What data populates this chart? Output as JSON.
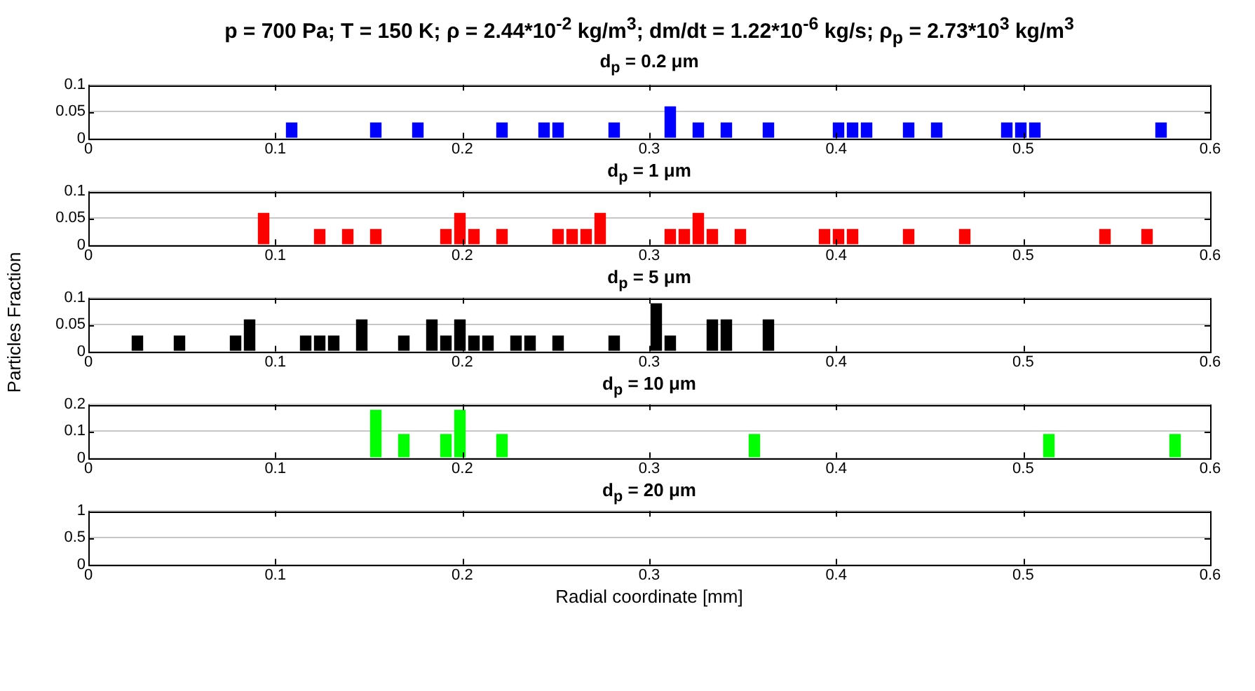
{
  "chart_data": [
    {
      "type": "histogram",
      "title": "p = 700 Pa; T = 150 K; ρ = 2.44*10$^{-2}$ kg/m$^{3}$; dm/dt = 1.22*10$^{-6}$ kg/s; ρ$_{p}$ = 2.73*10$^{3}$ kg/m$^{3}$",
      "subtitle": "d$_{p}$ = 0.2 μm",
      "color": "#0000ff",
      "bins": [
        0,
        0.0075,
        0.015,
        0.0225,
        0.03,
        0.0375,
        0.045,
        0.0525,
        0.06,
        0.0675,
        0.075,
        0.0825,
        0.09,
        0.0975,
        0.105,
        0.1125,
        0.12,
        0.1275,
        0.135,
        0.1425,
        0.15,
        0.1575,
        0.165,
        0.1725,
        0.18,
        0.1875,
        0.195,
        0.2025,
        0.21,
        0.2175,
        0.225,
        0.2325,
        0.24,
        0.2475,
        0.255,
        0.2625,
        0.27,
        0.2775,
        0.285,
        0.2925,
        0.3,
        0.3075,
        0.315,
        0.3225,
        0.33,
        0.3375,
        0.345,
        0.3525,
        0.36,
        0.3675,
        0.375,
        0.3825,
        0.39,
        0.3975,
        0.405,
        0.4125,
        0.42,
        0.4275,
        0.435,
        0.4425,
        0.45,
        0.4575,
        0.465,
        0.4725,
        0.48,
        0.4875,
        0.495,
        0.5025,
        0.51,
        0.5175,
        0.525,
        0.5325,
        0.54,
        0.5475,
        0.555,
        0.5625,
        0.57,
        0.5775,
        0.585,
        0.5925,
        0.6
      ],
      "values": [
        0,
        0,
        0,
        0,
        0,
        0,
        0,
        0,
        0,
        0,
        0,
        0,
        0,
        0,
        0.03,
        0,
        0,
        0,
        0,
        0,
        0.03,
        0,
        0,
        0.03,
        0,
        0,
        0,
        0,
        0,
        0.03,
        0,
        0,
        0.03,
        0.03,
        0,
        0,
        0,
        0.03,
        0,
        0,
        0,
        0.06,
        0,
        0.03,
        0,
        0.03,
        0,
        0,
        0.03,
        0,
        0,
        0,
        0,
        0.03,
        0.03,
        0.03,
        0,
        0,
        0.03,
        0,
        0.03,
        0,
        0,
        0,
        0,
        0.03,
        0.03,
        0.03,
        0,
        0,
        0,
        0,
        0,
        0,
        0,
        0,
        0.03,
        0,
        0,
        0
      ],
      "xlim": [
        0,
        0.6
      ],
      "xticks": [
        0,
        0.1,
        0.2,
        0.3,
        0.4,
        0.5,
        0.6
      ],
      "ylim": [
        0,
        0.1
      ],
      "yticks": [
        0,
        0.05,
        0.1
      ],
      "grid": "y",
      "legend": false
    },
    {
      "type": "histogram",
      "title": "d$_{p}$ = 1 μm",
      "color": "#ff0000",
      "bins": [
        0,
        0.0075,
        0.015,
        0.0225,
        0.03,
        0.0375,
        0.045,
        0.0525,
        0.06,
        0.0675,
        0.075,
        0.0825,
        0.09,
        0.0975,
        0.105,
        0.1125,
        0.12,
        0.1275,
        0.135,
        0.1425,
        0.15,
        0.1575,
        0.165,
        0.1725,
        0.18,
        0.1875,
        0.195,
        0.2025,
        0.21,
        0.2175,
        0.225,
        0.2325,
        0.24,
        0.2475,
        0.255,
        0.2625,
        0.27,
        0.2775,
        0.285,
        0.2925,
        0.3,
        0.3075,
        0.315,
        0.3225,
        0.33,
        0.3375,
        0.345,
        0.3525,
        0.36,
        0.3675,
        0.375,
        0.3825,
        0.39,
        0.3975,
        0.405,
        0.4125,
        0.42,
        0.4275,
        0.435,
        0.4425,
        0.45,
        0.4575,
        0.465,
        0.4725,
        0.48,
        0.4875,
        0.495,
        0.5025,
        0.51,
        0.5175,
        0.525,
        0.5325,
        0.54,
        0.5475,
        0.555,
        0.5625,
        0.57,
        0.5775,
        0.585,
        0.5925,
        0.6
      ],
      "values": [
        0,
        0,
        0,
        0,
        0,
        0,
        0,
        0,
        0,
        0,
        0,
        0,
        0.06,
        0,
        0,
        0,
        0.03,
        0,
        0.03,
        0,
        0.03,
        0,
        0,
        0,
        0,
        0.03,
        0.06,
        0.03,
        0,
        0.03,
        0,
        0,
        0,
        0.03,
        0.03,
        0.03,
        0.06,
        0,
        0,
        0,
        0,
        0.03,
        0.03,
        0.06,
        0.03,
        0,
        0.03,
        0,
        0,
        0,
        0,
        0,
        0.03,
        0.03,
        0.03,
        0,
        0,
        0,
        0.03,
        0,
        0,
        0,
        0.03,
        0,
        0,
        0,
        0,
        0,
        0,
        0,
        0,
        0,
        0.03,
        0,
        0,
        0.03,
        0,
        0,
        0,
        0
      ],
      "xlim": [
        0,
        0.6
      ],
      "xticks": [
        0,
        0.1,
        0.2,
        0.3,
        0.4,
        0.5,
        0.6
      ],
      "ylim": [
        0,
        0.1
      ],
      "yticks": [
        0,
        0.05,
        0.1
      ],
      "grid": "y",
      "legend": false
    },
    {
      "type": "histogram",
      "title": "d$_{p}$ = 5 μm",
      "ylabel": "Particles Fraction",
      "color": "#000000",
      "bins": [
        0,
        0.0075,
        0.015,
        0.0225,
        0.03,
        0.0375,
        0.045,
        0.0525,
        0.06,
        0.0675,
        0.075,
        0.0825,
        0.09,
        0.0975,
        0.105,
        0.1125,
        0.12,
        0.1275,
        0.135,
        0.1425,
        0.15,
        0.1575,
        0.165,
        0.1725,
        0.18,
        0.1875,
        0.195,
        0.2025,
        0.21,
        0.2175,
        0.225,
        0.2325,
        0.24,
        0.2475,
        0.255,
        0.2625,
        0.27,
        0.2775,
        0.285,
        0.2925,
        0.3,
        0.3075,
        0.315,
        0.3225,
        0.33,
        0.3375,
        0.345,
        0.3525,
        0.36,
        0.3675,
        0.375,
        0.3825,
        0.39,
        0.3975,
        0.405,
        0.4125,
        0.42,
        0.4275,
        0.435,
        0.4425,
        0.45,
        0.4575,
        0.465,
        0.4725,
        0.48,
        0.4875,
        0.495,
        0.5025,
        0.51,
        0.5175,
        0.525,
        0.5325,
        0.54,
        0.5475,
        0.555,
        0.5625,
        0.57,
        0.5775,
        0.585,
        0.5925,
        0.6
      ],
      "values": [
        0,
        0,
        0,
        0.03,
        0,
        0,
        0.03,
        0,
        0,
        0,
        0.03,
        0.06,
        0,
        0,
        0,
        0.03,
        0.03,
        0.03,
        0,
        0.06,
        0,
        0,
        0.03,
        0,
        0.06,
        0.03,
        0.06,
        0.03,
        0.03,
        0,
        0.03,
        0.03,
        0,
        0.03,
        0,
        0,
        0,
        0.03,
        0,
        0,
        0.09,
        0.03,
        0,
        0,
        0.06,
        0.06,
        0,
        0,
        0.06,
        0,
        0,
        0,
        0,
        0,
        0,
        0,
        0,
        0,
        0,
        0,
        0,
        0,
        0,
        0,
        0,
        0,
        0,
        0,
        0,
        0,
        0,
        0,
        0,
        0,
        0,
        0,
        0,
        0,
        0,
        0
      ],
      "xlim": [
        0,
        0.6
      ],
      "xticks": [
        0,
        0.1,
        0.2,
        0.3,
        0.4,
        0.5,
        0.6
      ],
      "ylim": [
        0,
        0.1
      ],
      "yticks": [
        0,
        0.05,
        0.1
      ],
      "grid": "y",
      "legend": false
    },
    {
      "type": "histogram",
      "title": "d$_{p}$ = 10 μm",
      "color": "#00ff00",
      "bins": [
        0,
        0.0075,
        0.015,
        0.0225,
        0.03,
        0.0375,
        0.045,
        0.0525,
        0.06,
        0.0675,
        0.075,
        0.0825,
        0.09,
        0.0975,
        0.105,
        0.1125,
        0.12,
        0.1275,
        0.135,
        0.1425,
        0.15,
        0.1575,
        0.165,
        0.1725,
        0.18,
        0.1875,
        0.195,
        0.2025,
        0.21,
        0.2175,
        0.225,
        0.2325,
        0.24,
        0.2475,
        0.255,
        0.2625,
        0.27,
        0.2775,
        0.285,
        0.2925,
        0.3,
        0.3075,
        0.315,
        0.3225,
        0.33,
        0.3375,
        0.345,
        0.3525,
        0.36,
        0.3675,
        0.375,
        0.3825,
        0.39,
        0.3975,
        0.405,
        0.4125,
        0.42,
        0.4275,
        0.435,
        0.4425,
        0.45,
        0.4575,
        0.465,
        0.4725,
        0.48,
        0.4875,
        0.495,
        0.5025,
        0.51,
        0.5175,
        0.525,
        0.5325,
        0.54,
        0.5475,
        0.555,
        0.5625,
        0.57,
        0.5775,
        0.585,
        0.5925,
        0.6
      ],
      "values": [
        0,
        0,
        0,
        0,
        0,
        0,
        0,
        0,
        0,
        0,
        0,
        0,
        0,
        0,
        0,
        0,
        0,
        0,
        0,
        0,
        0.18,
        0,
        0.09,
        0,
        0,
        0.09,
        0.18,
        0,
        0,
        0.09,
        0,
        0,
        0,
        0,
        0,
        0,
        0,
        0,
        0,
        0,
        0,
        0,
        0,
        0,
        0,
        0,
        0,
        0.09,
        0,
        0,
        0,
        0,
        0,
        0,
        0,
        0,
        0,
        0,
        0,
        0,
        0,
        0,
        0,
        0,
        0,
        0,
        0,
        0,
        0.09,
        0,
        0,
        0,
        0,
        0,
        0,
        0,
        0,
        0.09,
        0,
        0
      ],
      "xlim": [
        0,
        0.6
      ],
      "xticks": [
        0,
        0.1,
        0.2,
        0.3,
        0.4,
        0.5,
        0.6
      ],
      "ylim": [
        0,
        0.2
      ],
      "yticks": [
        0,
        0.1,
        0.2
      ],
      "grid": "y",
      "legend": false
    },
    {
      "type": "histogram",
      "title": "d$_{p}$ = 20 μm",
      "xlabel": "Radial coordinate [mm]",
      "xlim": [
        0,
        0.6
      ],
      "xticks": [
        0,
        0.1,
        0.2,
        0.3,
        0.4,
        0.5,
        0.6
      ],
      "ylim": [
        0,
        1
      ],
      "yticks": [
        0,
        0.5,
        1
      ],
      "grid": "y",
      "legend": false
    }
  ]
}
